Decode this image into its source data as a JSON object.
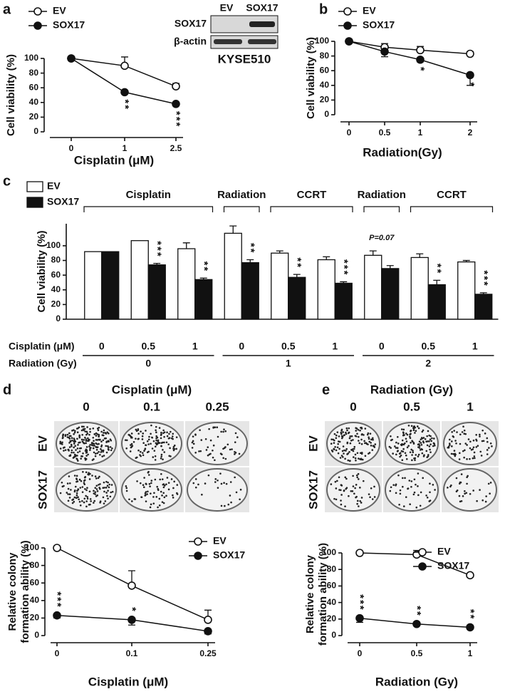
{
  "panels": [
    "a",
    "b",
    "c",
    "d",
    "e"
  ],
  "blot": {
    "lanes": [
      "EV",
      "SOX17"
    ],
    "rows": [
      "SOX17",
      "β-actin"
    ],
    "caption": "KYSE510"
  },
  "photos_d": {
    "title": "Cisplatin (μM)",
    "columns": [
      "0",
      "0.1",
      "0.25"
    ],
    "rows": [
      "EV",
      "SOX17"
    ]
  },
  "photos_e": {
    "title": "Radiation (Gy)",
    "columns": [
      "0",
      "0.5",
      "1"
    ],
    "rows": [
      "EV",
      "SOX17"
    ]
  },
  "chart_data": [
    {
      "type": "line",
      "xlabel": "Cisplatin (μM)",
      "ylabel": [
        "Cell viability (%)"
      ],
      "categories": [
        "0",
        "1",
        "2.5"
      ],
      "ylim": [
        0,
        100
      ],
      "yticks": [
        0,
        20,
        40,
        60,
        80,
        100
      ],
      "series": [
        {
          "name": "EV",
          "color": "#111111",
          "fill": "#ffffff",
          "values": [
            100,
            90,
            62
          ],
          "errors": [
            0,
            12,
            4
          ]
        },
        {
          "name": "SOX17",
          "color": "#111111",
          "fill": "#111111",
          "values": [
            100,
            54,
            38
          ],
          "errors": [
            0,
            2,
            2
          ]
        }
      ],
      "annotations": [
        null,
        "**",
        "***"
      ]
    },
    {
      "type": "line",
      "xlabel": "Radiation(Gy)",
      "ylabel": [
        "Cell viability (%)"
      ],
      "categories": [
        "0",
        "0.5",
        "1",
        "2"
      ],
      "ylim": [
        0,
        100
      ],
      "yticks": [
        0,
        20,
        40,
        60,
        80,
        100
      ],
      "series": [
        {
          "name": "EV",
          "color": "#111111",
          "fill": "#ffffff",
          "values": [
            100,
            92,
            88,
            83
          ],
          "errors": [
            0,
            5,
            5,
            3
          ]
        },
        {
          "name": "SOX17",
          "color": "#111111",
          "fill": "#111111",
          "values": [
            100,
            86,
            75,
            54
          ],
          "errors": [
            0,
            7,
            3,
            14
          ]
        }
      ],
      "annotations": [
        null,
        null,
        "*",
        "*"
      ]
    },
    {
      "type": "bar",
      "ylabel": [
        "Cell viability (%)"
      ],
      "ylim": [
        0,
        130
      ],
      "yticks": [
        0,
        20,
        40,
        60,
        80,
        100
      ],
      "categories": [
        "0",
        "0.5",
        "1",
        "0",
        "0.5",
        "1",
        "0",
        "0.5",
        "1"
      ],
      "category_label": "Cisplatin (μM)",
      "groups": [
        "0",
        "1",
        "2"
      ],
      "group_label": "Radiation (Gy)",
      "brackets": [
        "Cisplatin",
        "Radiation",
        "CCRT",
        "Radiation",
        "CCRT"
      ],
      "series": [
        {
          "name": "EV",
          "color": "#111111",
          "fill": "#ffffff",
          "values": [
            92,
            107,
            96,
            117,
            90,
            81,
            87,
            84,
            78
          ],
          "errors": [
            0,
            0,
            8,
            10,
            3,
            4,
            6,
            5,
            2
          ]
        },
        {
          "name": "SOX17",
          "color": "#111111",
          "fill": "#111111",
          "values": [
            92,
            74,
            54,
            77,
            57,
            49,
            69,
            47,
            34
          ],
          "errors": [
            0,
            2,
            2,
            4,
            4,
            2,
            4,
            6,
            2
          ]
        }
      ],
      "annotations": [
        null,
        "***",
        "**",
        "**",
        "**",
        "***",
        "P=0.07",
        "**",
        "***"
      ]
    },
    {
      "type": "line",
      "xlabel": "Cisplatin (μM)",
      "ylabel": [
        "Relative colony",
        "formation ability (%)"
      ],
      "categories": [
        "0",
        "0.1",
        "0.25"
      ],
      "ylim": [
        0,
        100
      ],
      "yticks": [
        0,
        20,
        40,
        60,
        80,
        100
      ],
      "series": [
        {
          "name": "EV",
          "color": "#111111",
          "fill": "#ffffff",
          "values": [
            100,
            57,
            18
          ],
          "errors": [
            0,
            17,
            11
          ]
        },
        {
          "name": "SOX17",
          "color": "#111111",
          "fill": "#111111",
          "values": [
            23,
            18,
            5
          ],
          "errors": [
            3,
            6,
            3
          ]
        }
      ],
      "annotations": [
        "***",
        "*",
        null
      ]
    },
    {
      "type": "line",
      "xlabel": "Radiation (Gy)",
      "ylabel": [
        "Relative colony",
        "formation ability (%)"
      ],
      "categories": [
        "0",
        "0.5",
        "1"
      ],
      "ylim": [
        0,
        100
      ],
      "yticks": [
        0,
        20,
        40,
        60,
        80,
        100
      ],
      "series": [
        {
          "name": "EV",
          "color": "#111111",
          "fill": "#ffffff",
          "values": [
            100,
            98,
            73
          ],
          "errors": [
            0,
            5,
            2
          ]
        },
        {
          "name": "SOX17",
          "color": "#111111",
          "fill": "#111111",
          "values": [
            21,
            14,
            10
          ],
          "errors": [
            5,
            2,
            2
          ]
        }
      ],
      "annotations": [
        "***",
        "**",
        "**"
      ]
    }
  ]
}
